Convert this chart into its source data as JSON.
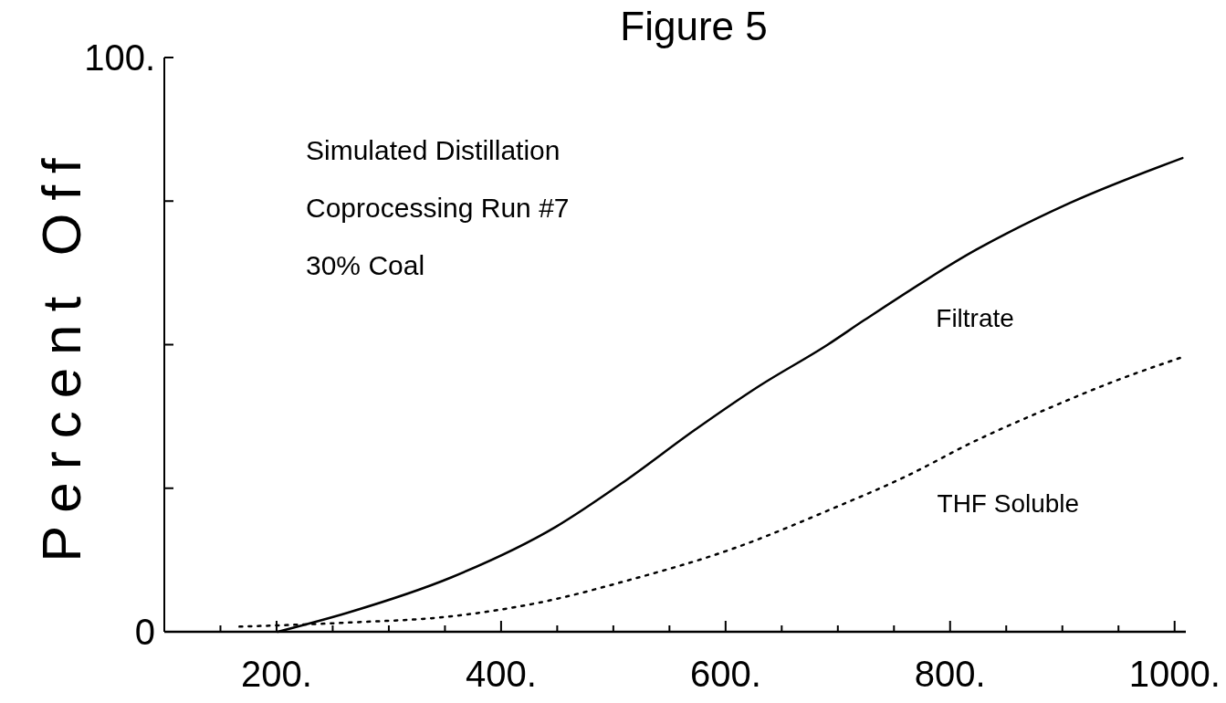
{
  "chart_data": {
    "type": "line",
    "title": "Figure 5",
    "ylabel": "Percent Off",
    "xlim": [
      100,
      1010
    ],
    "ylim": [
      0,
      100
    ],
    "xticks": [
      {
        "value": 150,
        "label": null
      },
      {
        "value": 200,
        "label": "200."
      },
      {
        "value": 250,
        "label": null
      },
      {
        "value": 300,
        "label": null
      },
      {
        "value": 350,
        "label": null
      },
      {
        "value": 400,
        "label": "400."
      },
      {
        "value": 450,
        "label": null
      },
      {
        "value": 500,
        "label": null
      },
      {
        "value": 550,
        "label": null
      },
      {
        "value": 600,
        "label": "600."
      },
      {
        "value": 650,
        "label": null
      },
      {
        "value": 700,
        "label": null
      },
      {
        "value": 750,
        "label": null
      },
      {
        "value": 800,
        "label": "800."
      },
      {
        "value": 850,
        "label": null
      },
      {
        "value": 900,
        "label": null
      },
      {
        "value": 950,
        "label": null
      },
      {
        "value": 1000,
        "label": "1000."
      }
    ],
    "yticks": [
      0,
      {
        "value": 25,
        "label": null
      },
      {
        "value": 50,
        "label": null
      },
      {
        "value": 75,
        "label": null
      },
      {
        "value": 100,
        "label": "100."
      }
    ],
    "annotations": [
      "Simulated Distillation",
      "Coprocessing Run #7",
      "30% Coal"
    ],
    "marker": "none",
    "series": [
      {
        "name": "Filtrate",
        "color": "#000000",
        "line_style": "solid",
        "x": [
          201,
          263,
          356,
          449,
          510,
          573,
          630,
          691,
          723,
          823,
          907,
          1007
        ],
        "values": [
          0,
          3.3,
          9.5,
          18.3,
          26.2,
          35.2,
          42.8,
          50,
          54.2,
          66.5,
          74.7,
          82.5
        ]
      },
      {
        "name": "THF Soluble",
        "color": "#000000",
        "line_style": "dotted",
        "x": [
          167,
          263,
          356,
          437,
          512,
          604,
          697,
          760,
          822,
          884,
          946,
          1008
        ],
        "values": [
          0.9,
          1.6,
          2.7,
          5.2,
          8.9,
          14.3,
          21.6,
          27,
          33.2,
          38.6,
          43.6,
          47.9
        ]
      }
    ]
  }
}
